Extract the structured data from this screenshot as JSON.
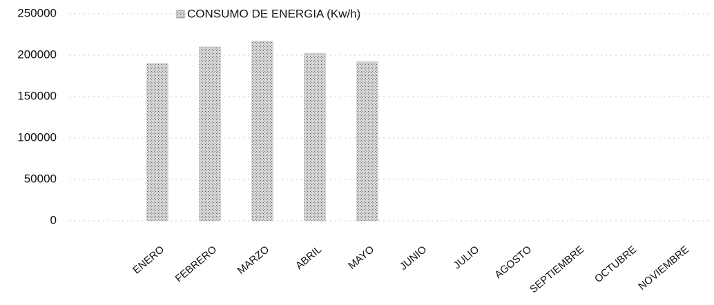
{
  "chart_data": {
    "type": "bar",
    "legend": "CONSUMO DE ENERGIA (Kw/h)",
    "categories": [
      "ENERO",
      "FEBRERO",
      "MARZO",
      "ABRIL",
      "MAYO",
      "JUNIO",
      "JULIO",
      "AGOSTO",
      "SEPTIEMBRE",
      "OCTUBRE",
      "NOVIEMBRE"
    ],
    "values": [
      190000,
      210000,
      217000,
      202000,
      192000,
      null,
      null,
      null,
      null,
      null,
      null
    ],
    "color": "#a8a8a8",
    "ylim": [
      0,
      250000
    ],
    "yticks": [
      0,
      50000,
      100000,
      150000,
      200000,
      250000
    ],
    "grid": true
  }
}
